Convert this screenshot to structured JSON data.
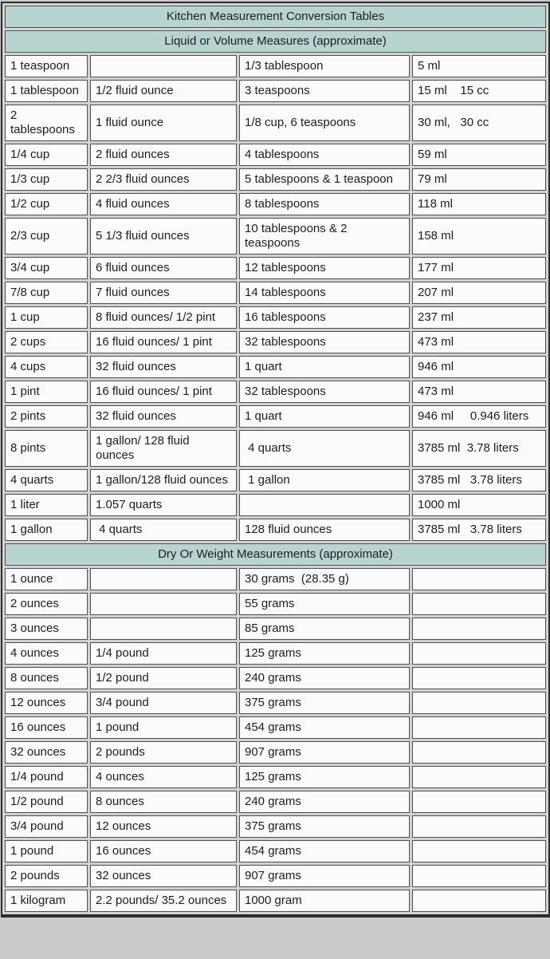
{
  "theme": {
    "page_bg": "#cbcbcb",
    "gap_bg": "#d2d2d2",
    "cell_bg": "#fbfbfb",
    "header_bg": "#b7d5d0",
    "cell_border": "#4f4f4f",
    "outer_border": "#2d2d2d",
    "text_color": "#1d1d1d"
  },
  "table": {
    "title": "Kitchen Measurement Conversion Tables",
    "columns": 4,
    "sections": [
      {
        "header": "Liquid or Volume Measures (approximate)",
        "rows": [
          [
            "1 teaspoon",
            "",
            "1/3 tablespoon",
            "5 ml"
          ],
          [
            "1 tablespoon",
            "1/2 fluid ounce",
            "3 teaspoons",
            "15 ml    15 cc"
          ],
          [
            "2 tablespoons",
            "1 fluid ounce",
            "1/8 cup, 6 teaspoons",
            "30 ml,   30 cc"
          ],
          [
            "1/4 cup",
            "2 fluid ounces",
            "4 tablespoons",
            "59 ml"
          ],
          [
            "1/3 cup",
            "2 2/3 fluid ounces",
            "5 tablespoons & 1 teaspoon",
            "79 ml"
          ],
          [
            "1/2 cup",
            "4 fluid ounces",
            "8 tablespoons",
            "118 ml"
          ],
          [
            "2/3 cup",
            "5 1/3 fluid ounces",
            "10 tablespoons & 2 teaspoons",
            "158 ml"
          ],
          [
            "3/4 cup",
            "6 fluid ounces",
            "12 tablespoons",
            "177 ml"
          ],
          [
            "7/8 cup",
            "7 fluid ounces",
            "14 tablespoons",
            "207 ml"
          ],
          [
            "1 cup",
            "8 fluid ounces/ 1/2 pint",
            "16 tablespoons",
            "237 ml"
          ],
          [
            "2 cups",
            "16 fluid ounces/ 1 pint",
            "32 tablespoons",
            "473 ml"
          ],
          [
            "4 cups",
            "32 fluid ounces",
            "1 quart",
            "946 ml"
          ],
          [
            "1 pint",
            "16 fluid ounces/ 1 pint",
            "32 tablespoons",
            "473 ml"
          ],
          [
            "2 pints",
            "32 fluid ounces",
            "1 quart",
            "946 ml     0.946 liters"
          ],
          [
            "8 pints",
            "1 gallon/ 128 fluid ounces",
            " 4 quarts",
            "3785 ml  3.78 liters"
          ],
          [
            "4 quarts",
            "1 gallon/128 fluid ounces",
            " 1 gallon",
            "3785 ml   3.78 liters"
          ],
          [
            "1 liter",
            "1.057 quarts",
            "",
            "1000 ml"
          ],
          [
            "1 gallon",
            " 4 quarts",
            "128 fluid ounces",
            "3785 ml   3.78 liters"
          ]
        ]
      },
      {
        "header": "Dry Or Weight Measurements (approximate)",
        "rows": [
          [
            "1 ounce",
            "",
            "30 grams  (28.35 g)",
            ""
          ],
          [
            "2 ounces",
            "",
            "55 grams",
            ""
          ],
          [
            "3 ounces",
            "",
            "85 grams",
            ""
          ],
          [
            "4 ounces",
            "1/4 pound",
            "125 grams",
            ""
          ],
          [
            "8 ounces",
            "1/2 pound",
            "240 grams",
            ""
          ],
          [
            "12 ounces",
            "3/4 pound",
            "375 grams",
            ""
          ],
          [
            "16 ounces",
            "1 pound",
            "454 grams",
            ""
          ],
          [
            "32 ounces",
            "2 pounds",
            "907 grams",
            ""
          ],
          [
            "1/4 pound",
            "4 ounces",
            "125 grams",
            ""
          ],
          [
            "1/2 pound",
            "8 ounces",
            "240 grams",
            ""
          ],
          [
            "3/4 pound",
            "12 ounces",
            "375 grams",
            ""
          ],
          [
            "1 pound",
            "16 ounces",
            "454 grams",
            ""
          ],
          [
            "2 pounds",
            "32 ounces",
            "907 grams",
            ""
          ],
          [
            "1 kilogram",
            "2.2 pounds/ 35.2 ounces",
            "1000 gram",
            ""
          ]
        ]
      }
    ]
  }
}
